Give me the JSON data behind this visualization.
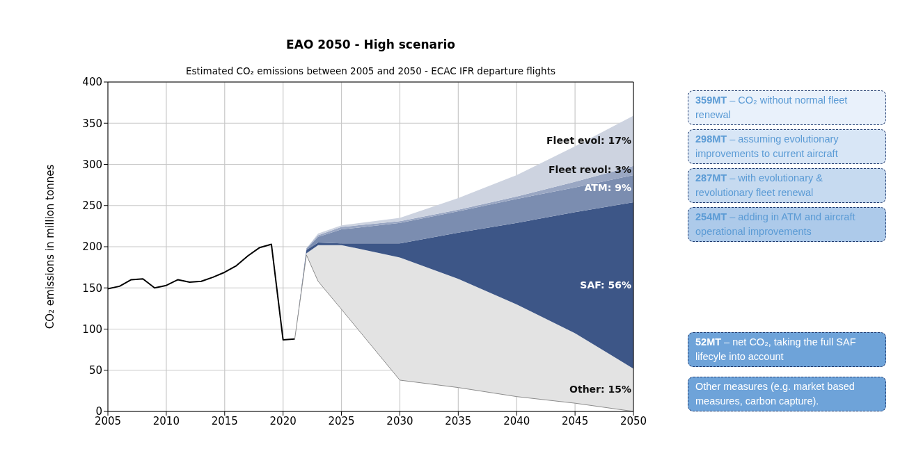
{
  "chart_data": {
    "type": "area",
    "title": "EAO 2050 - High scenario",
    "subtitle": "Estimated CO₂ emissions between 2005 and 2050 - ECAC IFR departure flights",
    "ylabel": "CO₂ emissions in million tonnes",
    "x": [
      2021,
      2022,
      2023,
      2025,
      2030,
      2035,
      2040,
      2045,
      2050
    ],
    "series": [
      {
        "type": "line",
        "color": "#000000",
        "x": [
          2005,
          2006,
          2007,
          2008,
          2009,
          2010,
          2011,
          2012,
          2013,
          2014,
          2015,
          2016,
          2017,
          2018,
          2019,
          2020,
          2021
        ],
        "values": [
          149,
          152,
          160,
          161,
          150,
          153,
          160,
          157,
          158,
          163,
          169,
          177,
          189,
          199,
          203,
          87,
          88
        ]
      },
      {
        "type": "line",
        "color": "#8c8c8c",
        "values": [
          88,
          190,
          158,
          124,
          38,
          29,
          18,
          10,
          0
        ]
      },
      {
        "name": "Other: 15%",
        "color": "#e3e3e3",
        "values": [
          88,
          192,
          202,
          202,
          187,
          161,
          130,
          95,
          52
        ]
      },
      {
        "name": "SAF: 56%",
        "color": "#3d5687",
        "values": [
          88,
          196,
          205,
          204,
          204,
          217,
          229,
          242,
          254
        ]
      },
      {
        "name": "ATM: 9%",
        "color": "#7b8db0",
        "values": [
          88,
          197,
          212,
          221,
          229,
          243,
          258,
          272,
          287
        ]
      },
      {
        "name": "Fleet revol: 3%",
        "color": "#9aa7c3",
        "values": [
          88,
          198,
          214,
          224,
          231,
          245,
          261,
          279,
          298
        ]
      },
      {
        "name": "Fleet evol: 17%",
        "color": "#cdd3e0",
        "values": [
          88,
          198,
          216,
          226,
          235,
          259,
          287,
          322,
          359
        ]
      }
    ],
    "xlim": [
      2005,
      2050
    ],
    "xticks": [
      2005,
      2010,
      2015,
      2020,
      2025,
      2030,
      2035,
      2040,
      2045,
      2050
    ],
    "ylim": [
      0,
      400
    ],
    "yticks": [
      0,
      50,
      100,
      150,
      200,
      250,
      300,
      350,
      400
    ],
    "grid": true,
    "annotations": [
      "359MT – CO₂ without normal fleet renewal",
      "298MT – assuming evolutionary improvements to current aircraft",
      "287MT – with evolutionary & revolutionary fleet renewal",
      "254MT – adding in ATM and aircraft operational improvements",
      "52MT – net CO₂, taking the full SAF lifecyle into account",
      "Other measures (e.g. market based measures, carbon capture)."
    ]
  }
}
